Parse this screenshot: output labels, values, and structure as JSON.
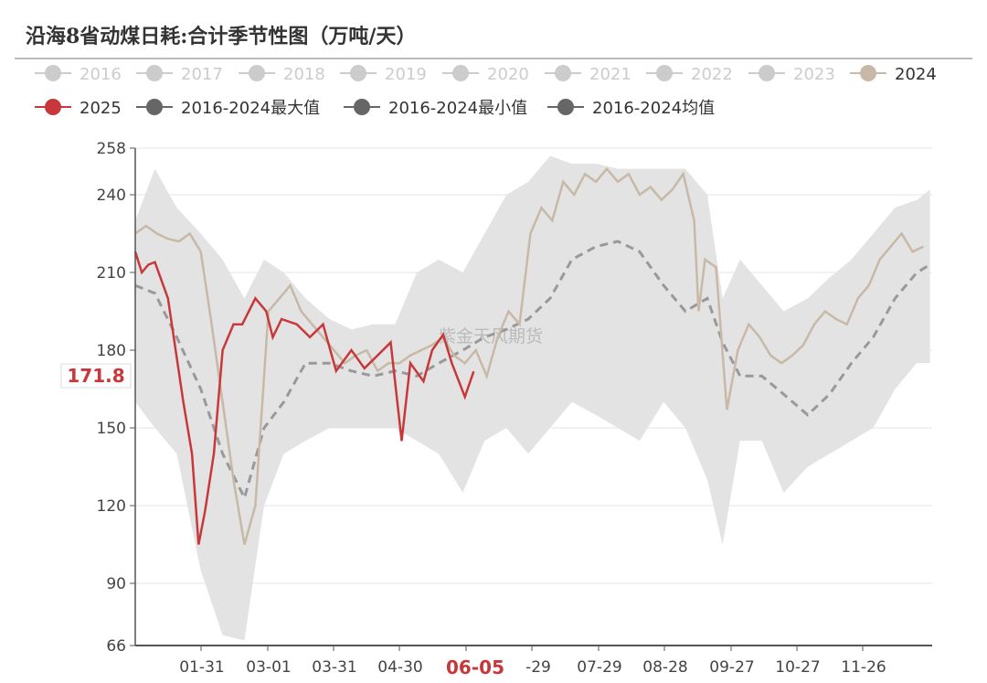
{
  "title": "沿海8省动煤日耗:合计季节性图（万吨/天）",
  "watermark": "紫金天风期货",
  "colors": {
    "inactive": "#cccccc",
    "y2024": "#c8b9a6",
    "y2025": "#c8383a",
    "band": "#e3e3e3",
    "mean": "#999999",
    "axis": "#555555"
  },
  "legend": [
    {
      "label": "2016",
      "active": false
    },
    {
      "label": "2017",
      "active": false
    },
    {
      "label": "2018",
      "active": false
    },
    {
      "label": "2019",
      "active": false
    },
    {
      "label": "2020",
      "active": false
    },
    {
      "label": "2021",
      "active": false
    },
    {
      "label": "2022",
      "active": false
    },
    {
      "label": "2023",
      "active": false
    },
    {
      "label": "2024",
      "active": true,
      "color": "#c8b9a6"
    },
    {
      "label": "2025",
      "active": true,
      "color": "#c8383a"
    },
    {
      "label": "2016-2024最大值",
      "active": true,
      "color": "#666666"
    },
    {
      "label": "2016-2024最小值",
      "active": true,
      "color": "#666666"
    },
    {
      "label": "2016-2024均值",
      "active": true,
      "color": "#666666"
    }
  ],
  "pointer": {
    "x_label": "06-05",
    "y_label": "171.8"
  },
  "chart_data": {
    "type": "line",
    "ylim": [
      66,
      258
    ],
    "yticks": [
      66,
      90,
      120,
      150,
      180,
      210,
      240,
      258
    ],
    "xticks": [
      "01-31",
      "03-01",
      "03-31",
      "04-30",
      "06-05",
      "-29",
      "07-29",
      "08-28",
      "09-27",
      "10-27",
      "11-26"
    ],
    "band": {
      "max": [
        [
          "01-01",
          230
        ],
        [
          "01-10",
          250
        ],
        [
          "01-20",
          235
        ],
        [
          "01-31",
          225
        ],
        [
          "02-10",
          215
        ],
        [
          "02-20",
          200
        ],
        [
          "03-01",
          215
        ],
        [
          "03-10",
          210
        ],
        [
          "03-20",
          200
        ],
        [
          "03-31",
          192
        ],
        [
          "04-10",
          188
        ],
        [
          "04-20",
          190
        ],
        [
          "04-30",
          190
        ],
        [
          "05-10",
          210
        ],
        [
          "05-20",
          215
        ],
        [
          "05-31",
          210
        ],
        [
          "06-10",
          225
        ],
        [
          "06-20",
          240
        ],
        [
          "06-30",
          245
        ],
        [
          "07-10",
          255
        ],
        [
          "07-20",
          252
        ],
        [
          "07-31",
          252
        ],
        [
          "08-10",
          250
        ],
        [
          "08-20",
          250
        ],
        [
          "08-31",
          250
        ],
        [
          "09-10",
          250
        ],
        [
          "09-20",
          240
        ],
        [
          "09-27",
          200
        ],
        [
          "10-05",
          215
        ],
        [
          "10-15",
          205
        ],
        [
          "10-25",
          195
        ],
        [
          "11-05",
          200
        ],
        [
          "11-15",
          208
        ],
        [
          "11-25",
          215
        ],
        [
          "12-05",
          225
        ],
        [
          "12-15",
          235
        ],
        [
          "12-25",
          238
        ],
        [
          "12-31",
          242
        ]
      ],
      "min": [
        [
          "01-01",
          160
        ],
        [
          "01-10",
          150
        ],
        [
          "01-20",
          140
        ],
        [
          "01-31",
          95
        ],
        [
          "02-10",
          70
        ],
        [
          "02-20",
          68
        ],
        [
          "03-01",
          120
        ],
        [
          "03-10",
          140
        ],
        [
          "03-20",
          145
        ],
        [
          "03-31",
          150
        ],
        [
          "04-10",
          150
        ],
        [
          "04-20",
          150
        ],
        [
          "04-30",
          150
        ],
        [
          "05-10",
          145
        ],
        [
          "05-20",
          140
        ],
        [
          "05-31",
          125
        ],
        [
          "06-10",
          145
        ],
        [
          "06-20",
          150
        ],
        [
          "06-30",
          140
        ],
        [
          "07-10",
          150
        ],
        [
          "07-20",
          160
        ],
        [
          "07-31",
          155
        ],
        [
          "08-10",
          150
        ],
        [
          "08-20",
          145
        ],
        [
          "08-31",
          160
        ],
        [
          "09-10",
          150
        ],
        [
          "09-20",
          130
        ],
        [
          "09-27",
          105
        ],
        [
          "10-05",
          145
        ],
        [
          "10-15",
          145
        ],
        [
          "10-25",
          125
        ],
        [
          "11-05",
          135
        ],
        [
          "11-15",
          140
        ],
        [
          "11-25",
          145
        ],
        [
          "12-05",
          150
        ],
        [
          "12-15",
          165
        ],
        [
          "12-25",
          175
        ],
        [
          "12-31",
          175
        ]
      ]
    },
    "mean": [
      [
        "01-01",
        205
      ],
      [
        "01-10",
        202
      ],
      [
        "01-20",
        185
      ],
      [
        "01-31",
        165
      ],
      [
        "02-10",
        140
      ],
      [
        "02-20",
        123
      ],
      [
        "03-01",
        150
      ],
      [
        "03-10",
        160
      ],
      [
        "03-20",
        175
      ],
      [
        "03-31",
        175
      ],
      [
        "04-10",
        172
      ],
      [
        "04-20",
        170
      ],
      [
        "04-30",
        172
      ],
      [
        "05-10",
        170
      ],
      [
        "05-20",
        175
      ],
      [
        "05-31",
        180
      ],
      [
        "06-10",
        185
      ],
      [
        "06-20",
        188
      ],
      [
        "06-30",
        192
      ],
      [
        "07-10",
        200
      ],
      [
        "07-20",
        215
      ],
      [
        "07-31",
        220
      ],
      [
        "08-10",
        222
      ],
      [
        "08-20",
        218
      ],
      [
        "08-31",
        205
      ],
      [
        "09-10",
        195
      ],
      [
        "09-20",
        200
      ],
      [
        "09-27",
        183
      ],
      [
        "10-05",
        170
      ],
      [
        "10-15",
        170
      ],
      [
        "10-25",
        163
      ],
      [
        "11-05",
        155
      ],
      [
        "11-15",
        163
      ],
      [
        "11-25",
        175
      ],
      [
        "12-05",
        185
      ],
      [
        "12-15",
        200
      ],
      [
        "12-25",
        210
      ],
      [
        "12-31",
        213
      ]
    ],
    "series": [
      {
        "name": "2024",
        "values": [
          [
            "01-01",
            225
          ],
          [
            "01-06",
            228
          ],
          [
            "01-11",
            225
          ],
          [
            "01-16",
            223
          ],
          [
            "01-21",
            222
          ],
          [
            "01-26",
            225
          ],
          [
            "01-31",
            218
          ],
          [
            "02-05",
            190
          ],
          [
            "02-10",
            160
          ],
          [
            "02-15",
            130
          ],
          [
            "02-20",
            105
          ],
          [
            "02-25",
            120
          ],
          [
            "03-01",
            170
          ],
          [
            "03-03",
            195
          ],
          [
            "03-08",
            200
          ],
          [
            "03-13",
            205
          ],
          [
            "03-18",
            195
          ],
          [
            "03-23",
            190
          ],
          [
            "03-28",
            185
          ],
          [
            "04-02",
            180
          ],
          [
            "04-07",
            175
          ],
          [
            "04-12",
            178
          ],
          [
            "04-17",
            180
          ],
          [
            "04-22",
            172
          ],
          [
            "04-27",
            175
          ],
          [
            "05-02",
            175
          ],
          [
            "05-07",
            178
          ],
          [
            "05-12",
            180
          ],
          [
            "05-17",
            182
          ],
          [
            "05-22",
            185
          ],
          [
            "05-27",
            178
          ],
          [
            "06-01",
            175
          ],
          [
            "06-06",
            180
          ],
          [
            "06-11",
            170
          ],
          [
            "06-16",
            185
          ],
          [
            "06-21",
            195
          ],
          [
            "06-26",
            190
          ],
          [
            "07-01",
            225
          ],
          [
            "07-06",
            235
          ],
          [
            "07-11",
            230
          ],
          [
            "07-16",
            245
          ],
          [
            "07-21",
            240
          ],
          [
            "07-26",
            248
          ],
          [
            "07-31",
            245
          ],
          [
            "08-05",
            250
          ],
          [
            "08-10",
            245
          ],
          [
            "08-15",
            248
          ],
          [
            "08-20",
            240
          ],
          [
            "08-25",
            243
          ],
          [
            "08-30",
            238
          ],
          [
            "09-04",
            242
          ],
          [
            "09-09",
            248
          ],
          [
            "09-14",
            230
          ],
          [
            "09-16",
            195
          ],
          [
            "09-19",
            215
          ],
          [
            "09-24",
            212
          ],
          [
            "09-29",
            157
          ],
          [
            "10-04",
            180
          ],
          [
            "10-09",
            190
          ],
          [
            "10-14",
            185
          ],
          [
            "10-19",
            178
          ],
          [
            "10-24",
            175
          ],
          [
            "10-29",
            178
          ],
          [
            "11-03",
            182
          ],
          [
            "11-08",
            190
          ],
          [
            "11-13",
            195
          ],
          [
            "11-18",
            192
          ],
          [
            "11-23",
            190
          ],
          [
            "11-28",
            200
          ],
          [
            "12-03",
            205
          ],
          [
            "12-08",
            215
          ],
          [
            "12-13",
            220
          ],
          [
            "12-18",
            225
          ],
          [
            "12-23",
            218
          ],
          [
            "12-28",
            220
          ]
        ]
      },
      {
        "name": "2025",
        "values": [
          [
            "01-01",
            218
          ],
          [
            "01-04",
            210
          ],
          [
            "01-07",
            213
          ],
          [
            "01-10",
            214
          ],
          [
            "01-16",
            200
          ],
          [
            "01-23",
            160
          ],
          [
            "01-27",
            140
          ],
          [
            "01-30",
            105
          ],
          [
            "02-02",
            118
          ],
          [
            "02-06",
            140
          ],
          [
            "02-10",
            180
          ],
          [
            "02-15",
            190
          ],
          [
            "02-19",
            190
          ],
          [
            "02-25",
            200
          ],
          [
            "03-02",
            195
          ],
          [
            "03-05",
            185
          ],
          [
            "03-09",
            192
          ],
          [
            "03-16",
            190
          ],
          [
            "03-22",
            185
          ],
          [
            "03-28",
            190
          ],
          [
            "04-03",
            172
          ],
          [
            "04-10",
            180
          ],
          [
            "04-16",
            173
          ],
          [
            "04-22",
            178
          ],
          [
            "04-28",
            183
          ],
          [
            "05-03",
            145
          ],
          [
            "05-07",
            175
          ],
          [
            "05-13",
            168
          ],
          [
            "05-17",
            180
          ],
          [
            "05-22",
            186
          ],
          [
            "05-26",
            175
          ],
          [
            "06-01",
            162
          ],
          [
            "06-05",
            171.8
          ]
        ]
      }
    ]
  }
}
